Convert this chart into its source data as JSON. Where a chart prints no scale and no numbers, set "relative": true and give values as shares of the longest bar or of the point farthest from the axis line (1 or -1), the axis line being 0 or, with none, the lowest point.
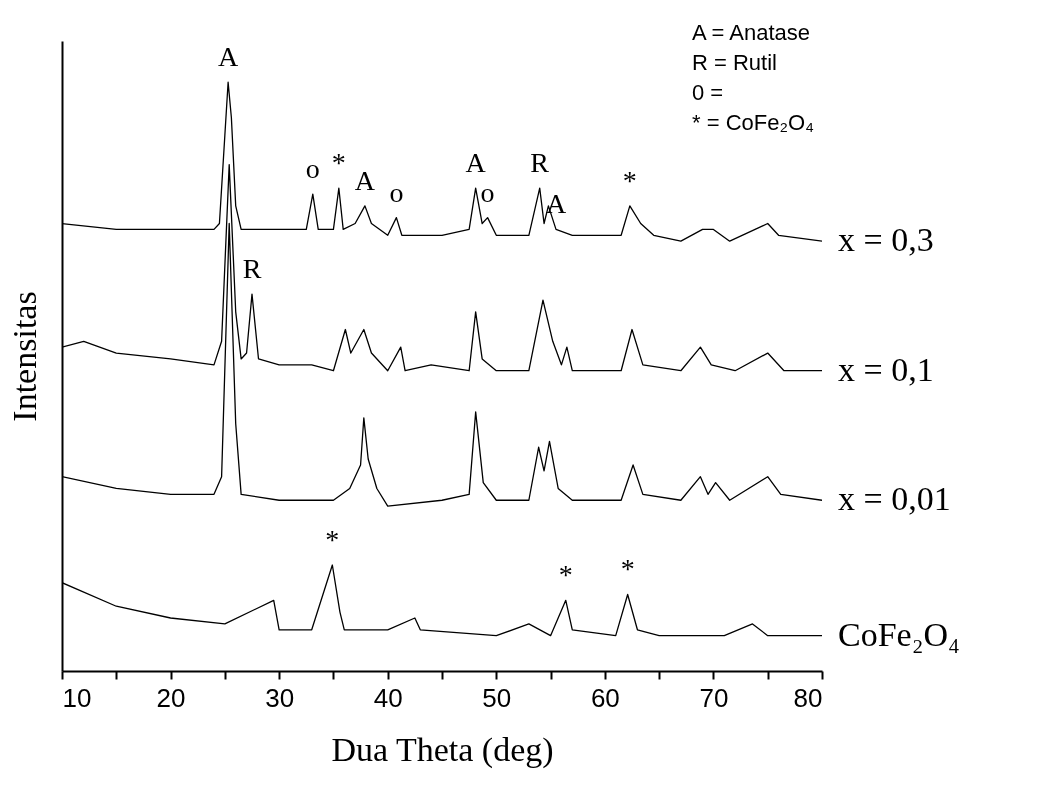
{
  "chart_data": {
    "type": "line",
    "relative": true,
    "xlabel": "Dua Theta (deg)",
    "ylabel": "Intensitas",
    "tick_labels": "x",
    "legend": false,
    "grid": false,
    "xlim": [
      10,
      80
    ],
    "xticks": [
      10,
      {
        "value": 15,
        "label": null
      },
      20,
      {
        "value": 25,
        "label": null
      },
      30,
      {
        "value": 35,
        "label": null
      },
      40,
      {
        "value": 45,
        "label": null
      },
      50,
      {
        "value": 55,
        "label": null
      },
      60,
      {
        "value": 65,
        "label": null
      },
      70,
      {
        "value": 75,
        "label": null
      },
      80
    ],
    "series": [
      {
        "name": "x = 0,3",
        "color": "#000000",
        "x": [
          10,
          15,
          20,
          24,
          24.5,
          25,
          25.3,
          25.6,
          26,
          26.5,
          30,
          32.5,
          33.1,
          33.6,
          35,
          35.5,
          35.9,
          37,
          37.9,
          38.5,
          40,
          40.8,
          41.3,
          45,
          47.5,
          48.1,
          48.7,
          49.2,
          50,
          53,
          54,
          54.4,
          54.8,
          55.5,
          57,
          61.5,
          62.3,
          63.3,
          64.5,
          67,
          69,
          70,
          71.5,
          75,
          76,
          80
        ],
        "values": [
          0.76,
          0.75,
          0.75,
          0.75,
          0.76,
          0.91,
          1.0,
          0.94,
          0.79,
          0.75,
          0.75,
          0.75,
          0.81,
          0.75,
          0.75,
          0.82,
          0.75,
          0.76,
          0.79,
          0.76,
          0.74,
          0.77,
          0.74,
          0.74,
          0.75,
          0.82,
          0.76,
          0.77,
          0.74,
          0.74,
          0.82,
          0.76,
          0.79,
          0.75,
          0.74,
          0.74,
          0.79,
          0.76,
          0.74,
          0.73,
          0.75,
          0.75,
          0.73,
          0.76,
          0.74,
          0.73
        ]
      },
      {
        "name": "x = 0,1",
        "color": "#000000",
        "x": [
          10,
          12,
          15,
          20,
          24,
          24.7,
          25.4,
          26,
          26.5,
          27,
          27.5,
          28.1,
          30,
          33,
          35,
          36.1,
          36.6,
          37.8,
          38.5,
          40,
          41.2,
          41.6,
          44,
          47.5,
          48.1,
          48.7,
          50,
          53,
          54.3,
          55.2,
          56,
          56.5,
          57,
          61.5,
          62.5,
          63.5,
          67,
          68.8,
          69.8,
          72,
          75,
          76.5,
          80
        ],
        "values": [
          0.55,
          0.56,
          0.54,
          0.53,
          0.52,
          0.56,
          0.86,
          0.61,
          0.53,
          0.54,
          0.64,
          0.53,
          0.52,
          0.52,
          0.51,
          0.58,
          0.54,
          0.58,
          0.54,
          0.51,
          0.55,
          0.51,
          0.52,
          0.51,
          0.61,
          0.53,
          0.51,
          0.51,
          0.63,
          0.56,
          0.52,
          0.55,
          0.51,
          0.51,
          0.58,
          0.52,
          0.51,
          0.55,
          0.52,
          0.51,
          0.54,
          0.51,
          0.51
        ]
      },
      {
        "name": "x = 0,01",
        "color": "#000000",
        "x": [
          10,
          15,
          20,
          24,
          24.7,
          25.4,
          26,
          26.5,
          30,
          35,
          36.5,
          37.5,
          37.8,
          38.2,
          39,
          40,
          45,
          47.5,
          48.1,
          48.8,
          50,
          53,
          53.9,
          54.4,
          54.9,
          55.7,
          57,
          61.5,
          62.6,
          63.5,
          67,
          68.8,
          69.5,
          70.2,
          71.5,
          75,
          76.2,
          80
        ],
        "values": [
          0.33,
          0.31,
          0.3,
          0.3,
          0.33,
          0.76,
          0.42,
          0.3,
          0.29,
          0.29,
          0.31,
          0.35,
          0.43,
          0.36,
          0.31,
          0.28,
          0.29,
          0.3,
          0.44,
          0.32,
          0.29,
          0.29,
          0.38,
          0.34,
          0.39,
          0.31,
          0.29,
          0.29,
          0.35,
          0.3,
          0.29,
          0.33,
          0.3,
          0.32,
          0.29,
          0.33,
          0.3,
          0.29
        ]
      },
      {
        "name": "CoFe₂O₄",
        "color": "#000000",
        "x": [
          10,
          15,
          20,
          25,
          29.5,
          30,
          33,
          34.9,
          35.6,
          36,
          40,
          42.5,
          43,
          50,
          53,
          55,
          56.4,
          57,
          61,
          62.1,
          63,
          65,
          71,
          73.6,
          75,
          80
        ],
        "values": [
          0.15,
          0.11,
          0.09,
          0.08,
          0.12,
          0.07,
          0.07,
          0.18,
          0.1,
          0.07,
          0.07,
          0.09,
          0.07,
          0.06,
          0.08,
          0.06,
          0.12,
          0.07,
          0.06,
          0.13,
          0.07,
          0.06,
          0.06,
          0.08,
          0.06,
          0.06
        ]
      }
    ],
    "annotations": [
      {
        "text": "A",
        "x": 25.3,
        "y": 1.0
      },
      {
        "text": "o",
        "x": 33.1,
        "y": 0.81
      },
      {
        "text": "*",
        "x": 35.5,
        "y": 0.82
      },
      {
        "text": "A",
        "x": 37.9,
        "y": 0.79
      },
      {
        "text": "o",
        "x": 40.8,
        "y": 0.77
      },
      {
        "text": "A",
        "x": 48.1,
        "y": 0.82
      },
      {
        "text": "o",
        "x": 49.2,
        "y": 0.77
      },
      {
        "text": "R",
        "x": 54,
        "y": 0.82
      },
      {
        "text": "A",
        "x": 55.5,
        "y": 0.75
      },
      {
        "text": "*",
        "x": 62.3,
        "y": 0.79
      },
      {
        "text": "R",
        "x": 27.5,
        "y": 0.64
      },
      {
        "text": "*",
        "x": 34.9,
        "y": 0.18
      },
      {
        "text": "*",
        "x": 56.4,
        "y": 0.12
      },
      {
        "text": "*",
        "x": 62.1,
        "y": 0.13
      },
      "A = Anatase",
      "R = Rutil",
      "0 =",
      "* = CoFe₂O₄"
    ]
  }
}
